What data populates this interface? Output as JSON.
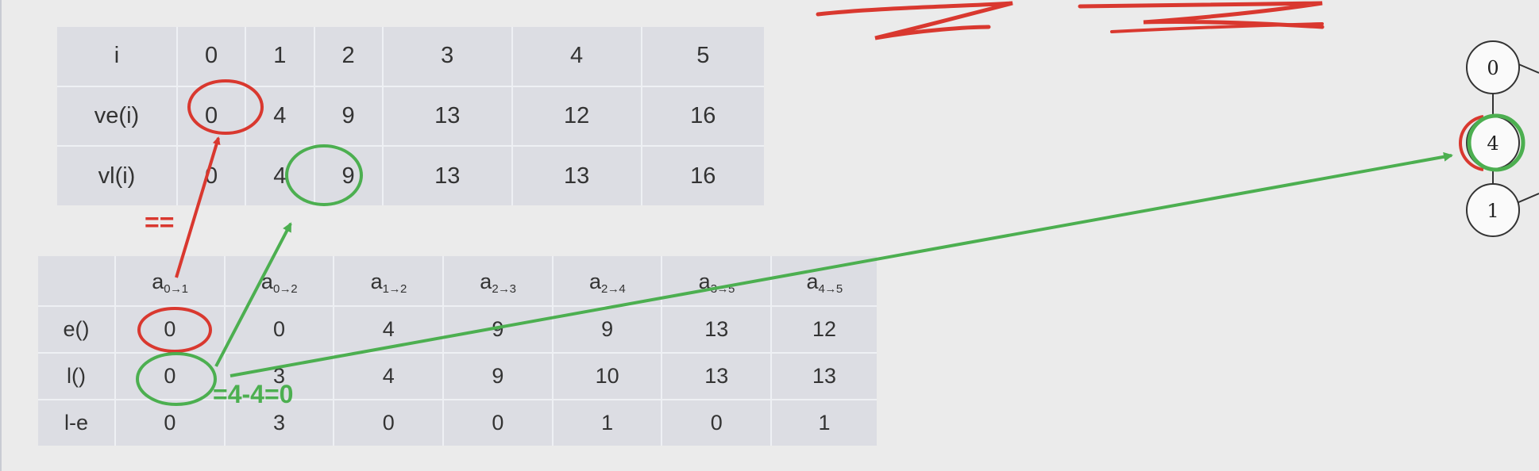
{
  "top_table": {
    "header": [
      "i",
      "0",
      "1",
      "2",
      "3",
      "4",
      "5"
    ],
    "rows": [
      [
        "ve(i)",
        "0",
        "4",
        "9",
        "13",
        "12",
        "16"
      ],
      [
        "vl(i)",
        "0",
        "4",
        "9",
        "13",
        "13",
        "16"
      ]
    ]
  },
  "bottom_table": {
    "header": [
      {
        "base": "a",
        "sub": "0→1"
      },
      {
        "base": "a",
        "sub": "0→2"
      },
      {
        "base": "a",
        "sub": "1→2"
      },
      {
        "base": "a",
        "sub": "2→3"
      },
      {
        "base": "a",
        "sub": "2→4"
      },
      {
        "base": "a",
        "sub": "3→5"
      },
      {
        "base": "a",
        "sub": "4→5"
      }
    ],
    "rows": [
      [
        "e()",
        "0",
        "0",
        "4",
        "9",
        "9",
        "13",
        "12"
      ],
      [
        "l()",
        "0",
        "3",
        "4",
        "9",
        "10",
        "13",
        "13"
      ],
      [
        "l-e",
        "0",
        "3",
        "0",
        "0",
        "1",
        "0",
        "1"
      ]
    ]
  },
  "annotations": {
    "equal_sign": "==",
    "formula": "=4-4=0",
    "red_color": "#d9382f",
    "green_color": "#4caf50"
  },
  "graph": {
    "nodes": [
      "0",
      "4",
      "1"
    ]
  }
}
